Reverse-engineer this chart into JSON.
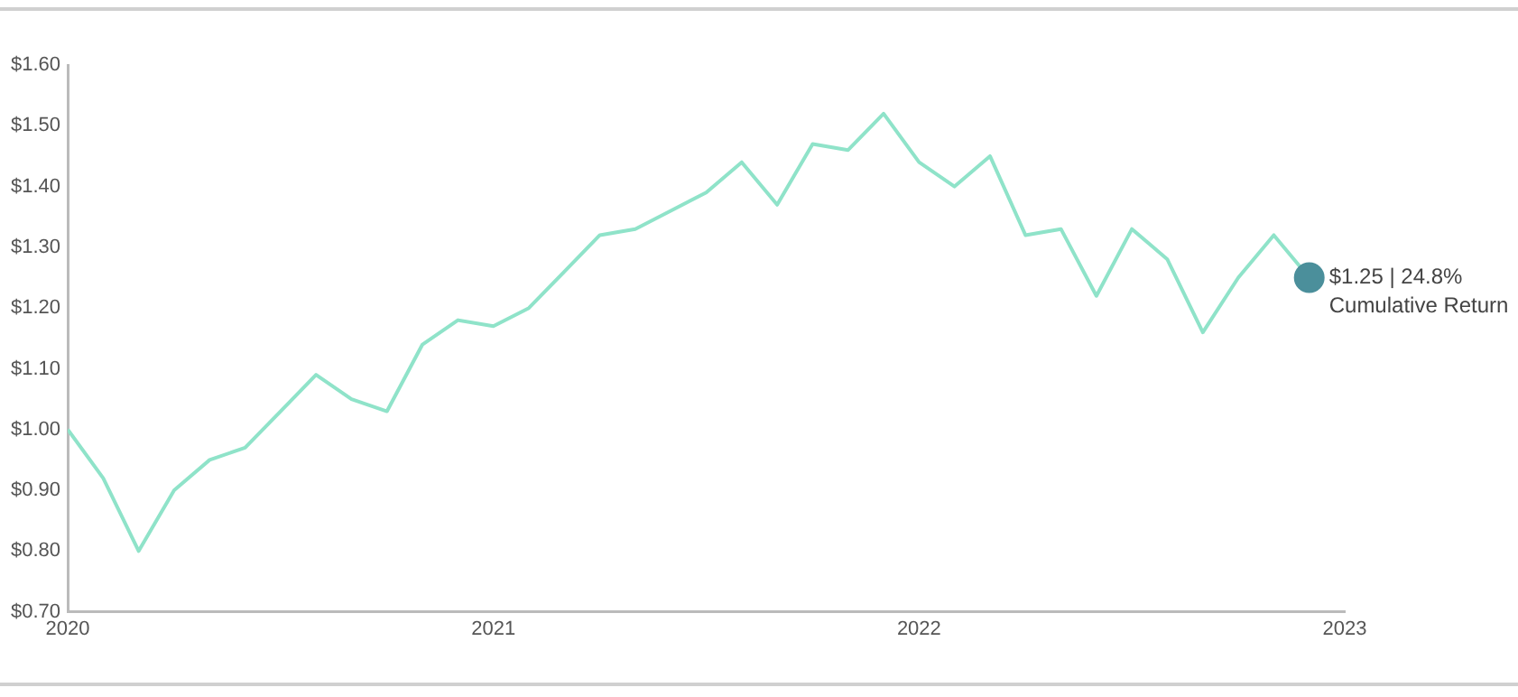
{
  "chart_data": {
    "type": "line",
    "x": [
      "2020-01",
      "2020-02",
      "2020-03",
      "2020-04",
      "2020-05",
      "2020-06",
      "2020-07",
      "2020-08",
      "2020-09",
      "2020-10",
      "2020-11",
      "2020-12",
      "2021-01",
      "2021-02",
      "2021-03",
      "2021-04",
      "2021-05",
      "2021-06",
      "2021-07",
      "2021-08",
      "2021-09",
      "2021-10",
      "2021-11",
      "2021-12",
      "2022-01",
      "2022-02",
      "2022-03",
      "2022-04",
      "2022-05",
      "2022-06",
      "2022-07",
      "2022-08",
      "2022-09",
      "2022-10",
      "2022-11",
      "2022-12"
    ],
    "series": [
      {
        "color": "#8fe3c9",
        "values": [
          1.0,
          0.92,
          0.8,
          0.9,
          0.95,
          0.97,
          1.03,
          1.09,
          1.05,
          1.03,
          1.14,
          1.18,
          1.17,
          1.2,
          1.26,
          1.32,
          1.33,
          1.36,
          1.39,
          1.44,
          1.37,
          1.47,
          1.46,
          1.52,
          1.44,
          1.4,
          1.45,
          1.32,
          1.33,
          1.22,
          1.33,
          1.28,
          1.16,
          1.25,
          1.32,
          1.25
        ]
      },
      {
        "type": "scatter",
        "color": "#4b8f9b",
        "x": [
          "2022-12"
        ],
        "values": [
          1.25
        ],
        "marker": "circle"
      }
    ],
    "annotations": [
      {
        "text": "$1.25 | 24.8%\nCumulative Return",
        "x": "2022-12",
        "y": 1.25
      }
    ],
    "xlim": [
      "2020-01",
      "2023-01"
    ],
    "xticks": [
      {
        "value": "2020-01",
        "label": "2020"
      },
      {
        "value": "2021-01",
        "label": "2021"
      },
      {
        "value": "2022-01",
        "label": "2022"
      },
      {
        "value": "2023-01",
        "label": "2023"
      }
    ],
    "ylim": [
      0.7,
      1.6
    ],
    "yticks": [
      {
        "value": 0.7,
        "label": "$0.70"
      },
      {
        "value": 0.8,
        "label": "$0.80"
      },
      {
        "value": 0.9,
        "label": "$0.90"
      },
      {
        "value": 1.0,
        "label": "$1.00"
      },
      {
        "value": 1.1,
        "label": "$1.10"
      },
      {
        "value": 1.2,
        "label": "$1.20"
      },
      {
        "value": 1.3,
        "label": "$1.30"
      },
      {
        "value": 1.4,
        "label": "$1.40"
      },
      {
        "value": 1.5,
        "label": "$1.50"
      },
      {
        "value": 1.6,
        "label": "$1.60"
      }
    ],
    "grid": false,
    "legend": false,
    "marker": "none"
  }
}
